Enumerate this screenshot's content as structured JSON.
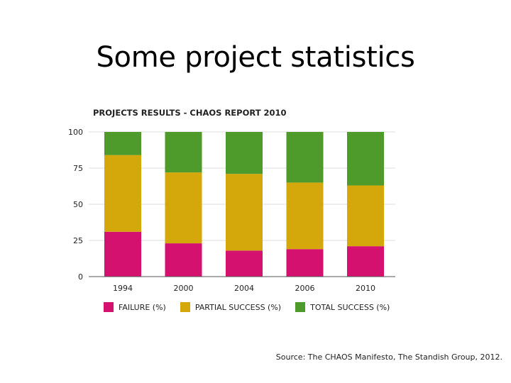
{
  "slide": {
    "title": "Some project statistics"
  },
  "chart_data": {
    "type": "bar",
    "stacked": true,
    "title": "PROJECTS RESULTS - CHAOS REPORT 2010",
    "xlabel": "",
    "ylabel": "",
    "categories": [
      "1994",
      "2000",
      "2004",
      "2006",
      "2010"
    ],
    "series": [
      {
        "name": "FAILURE (%)",
        "color": "#d4116f",
        "values": [
          31,
          23,
          18,
          19,
          21
        ]
      },
      {
        "name": "PARTIAL SUCCESS (%)",
        "color": "#d4a70a",
        "values": [
          53,
          49,
          53,
          46,
          42
        ]
      },
      {
        "name": "TOTAL SUCCESS (%)",
        "color": "#4e9a2a",
        "values": [
          16,
          28,
          29,
          35,
          37
        ]
      }
    ],
    "ylim": [
      0,
      100
    ],
    "yticks": [
      "0",
      "25",
      "50",
      "75",
      "100"
    ],
    "grid": true,
    "legend_position": "bottom"
  },
  "source": "Source: The CHAOS Manifesto, The Standish Group, 2012."
}
